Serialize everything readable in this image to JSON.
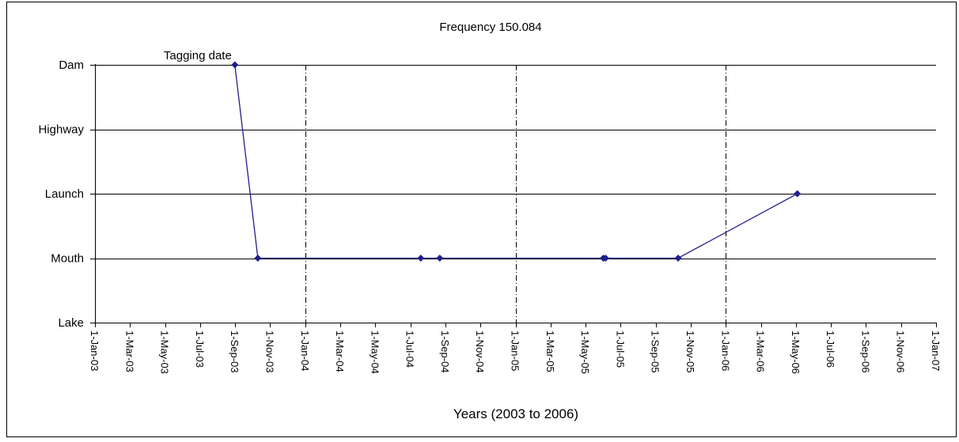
{
  "chart_data": {
    "type": "line",
    "title": "Frequency 150.084",
    "xlabel": "Years (2003 to 2006)",
    "ylabel": "",
    "y_categories": [
      "Lake",
      "Mouth",
      "Launch",
      "Highway",
      "Dam"
    ],
    "x_ticks": [
      "1-Jan-03",
      "1-Mar-03",
      "1-May-03",
      "1-Jul-03",
      "1-Sep-03",
      "1-Nov-03",
      "1-Jan-04",
      "1-Mar-04",
      "1-May-04",
      "1-Jul-04",
      "1-Sep-04",
      "1-Nov-04",
      "1-Jan-05",
      "1-Mar-05",
      "1-May-05",
      "1-Jul-05",
      "1-Sep-05",
      "1-Nov-05",
      "1-Jan-06",
      "1-Mar-06",
      "1-May-06",
      "1-Jul-06",
      "1-Sep-06",
      "1-Nov-06",
      "1-Jan-07"
    ],
    "xlim": [
      "2003-01-01",
      "2007-01-01"
    ],
    "year_dividers": [
      "2004-01-01",
      "2005-01-01",
      "2006-01-01"
    ],
    "grid": true,
    "series": [
      {
        "color": "#1f1f8f",
        "points": [
          {
            "x": "2003-09-01",
            "y": "Dam"
          },
          {
            "x": "2003-10-11",
            "y": "Mouth"
          },
          {
            "x": "2004-07-20",
            "y": "Mouth"
          },
          {
            "x": "2004-08-22",
            "y": "Mouth"
          },
          {
            "x": "2005-06-02",
            "y": "Mouth"
          },
          {
            "x": "2005-06-06",
            "y": "Mouth"
          },
          {
            "x": "2005-10-10",
            "y": "Mouth"
          },
          {
            "x": "2006-05-05",
            "y": "Launch"
          }
        ]
      }
    ],
    "annotations": [
      {
        "text": "Tagging date",
        "x": "2003-09-01",
        "y": "Dam"
      }
    ]
  }
}
